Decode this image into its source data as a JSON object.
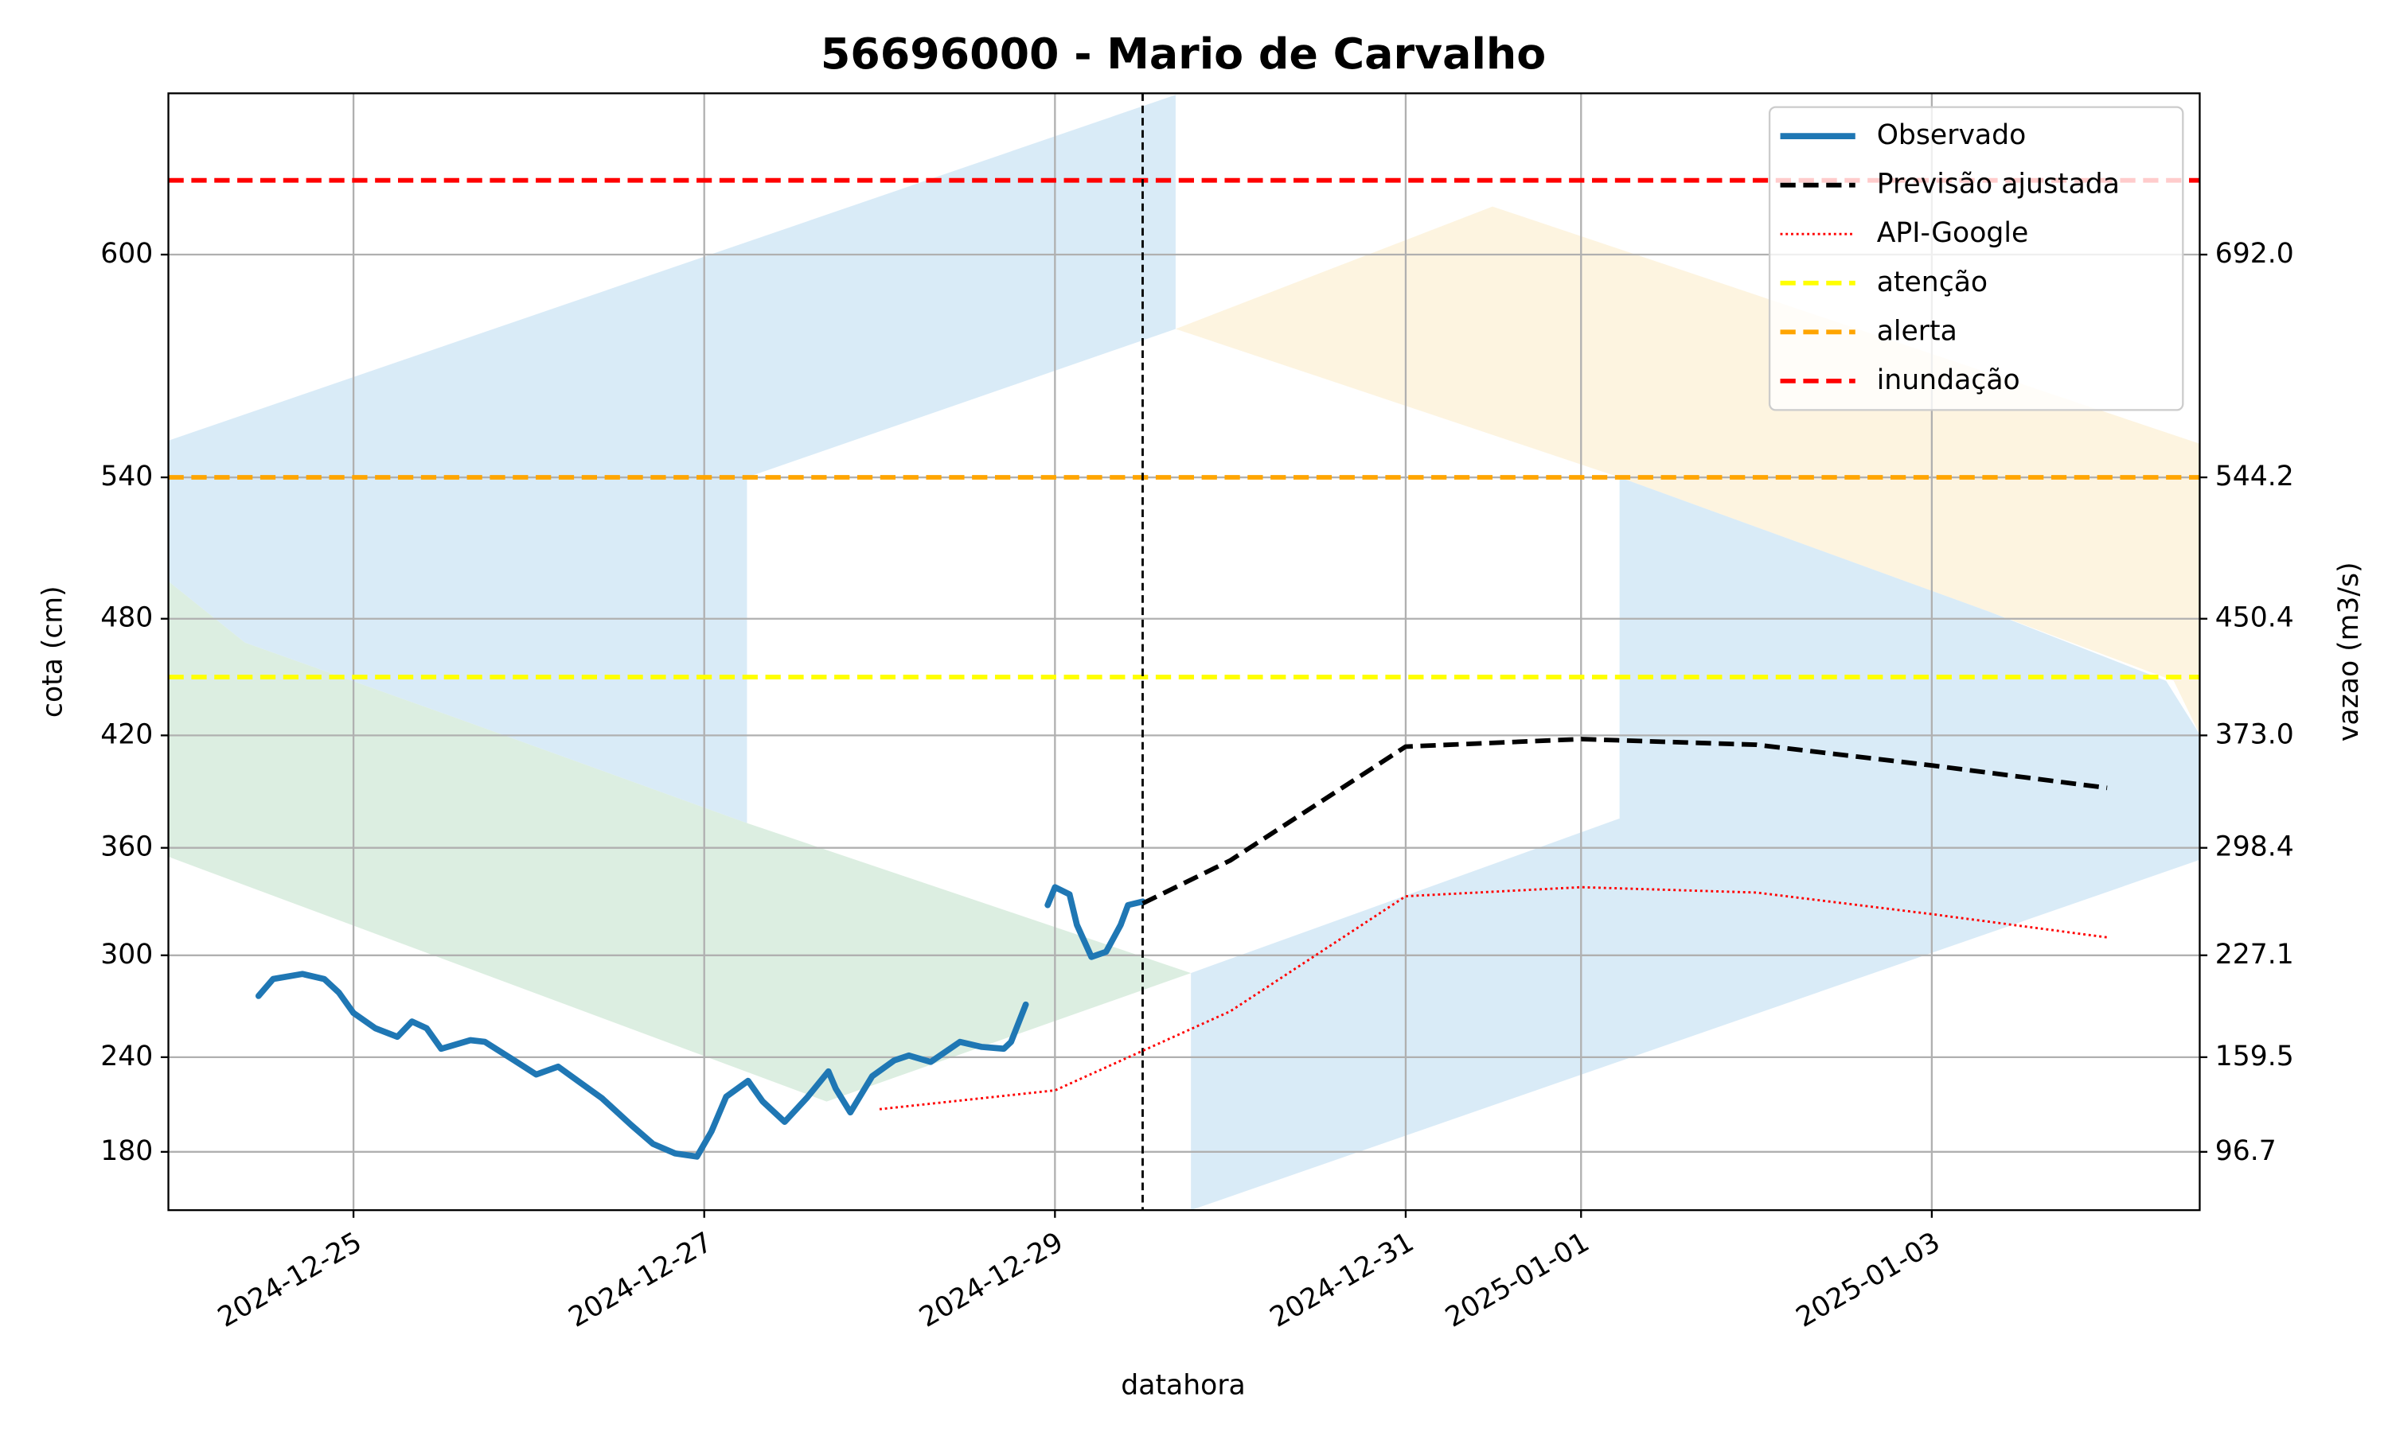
{
  "chart_data": {
    "type": "line",
    "title": "56696000 - Mario de Carvalho",
    "x_label": "datahora",
    "y_label": "cota (cm)",
    "y2_label": "vazao (m3/s)",
    "xlim": [
      "2024-12-23 22:40",
      "2025-01-04 12:40"
    ],
    "xticks": [
      "2024-12-25",
      "2024-12-27",
      "2024-12-29",
      "2024-12-31",
      "2025-01-01",
      "2025-01-03"
    ],
    "yticks": [
      180,
      240,
      300,
      360,
      420,
      480,
      540,
      600
    ],
    "y2lim": [
      58,
      799
    ],
    "y2ticks": [
      96.7,
      159.5,
      227.1,
      298.4,
      {
        "value": 373,
        "label": "373.0"
      },
      {
        "value": 450.4,
        "label": "450.4"
      },
      {
        "value": 544.2,
        "label": "544.2"
      },
      {
        "value": 692,
        "label": "692.0"
      }
    ],
    "grid": true,
    "legend": "upper right",
    "vline_x": "2024-12-29 12:00",
    "series": [
      {
        "name": "Observado",
        "color": "#1f77b4",
        "style": "solid",
        "x": [
          "2024-12-24 11:00",
          "2024-12-24 13:00",
          "2024-12-24 17:00",
          "2024-12-24 20:00",
          "2024-12-24 22:00",
          "2024-12-25 00:00",
          "2024-12-25 03:00",
          "2024-12-25 06:00",
          "2024-12-25 08:00",
          "2024-12-25 10:00",
          "2024-12-25 12:00",
          "2024-12-25 16:00",
          "2024-12-25 18:00",
          "2024-12-25 22:00",
          "2024-12-26 01:00",
          "2024-12-26 04:00",
          "2024-12-26 07:00",
          "2024-12-26 10:00",
          "2024-12-26 14:00",
          "2024-12-26 17:00",
          "2024-12-26 20:00",
          "2024-12-26 23:00",
          "2024-12-27 01:00",
          "2024-12-27 03:00",
          "2024-12-27 06:00",
          "2024-12-27 08:00",
          "2024-12-27 11:00",
          "2024-12-27 14:00",
          "2024-12-27 17:00",
          "2024-12-27 18:00",
          "2024-12-27 20:00",
          "2024-12-27 23:00",
          "2024-12-28 02:00",
          "2024-12-28 04:00",
          "2024-12-28 07:00",
          "2024-12-28 11:00",
          "2024-12-28 14:00",
          "2024-12-28 17:00",
          "2024-12-28 18:00",
          "2024-12-28 20:00",
          "2024-12-28 22:00",
          "2024-12-28 23:00",
          "2024-12-29 00:00",
          "2024-12-29 02:00",
          "2024-12-29 03:00",
          "2024-12-29 05:00",
          "2024-12-29 07:00",
          "2024-12-29 09:00",
          "2024-12-29 10:00",
          "2024-12-29 12:00"
        ],
        "values": [
          276,
          286,
          289,
          286,
          278,
          266,
          257,
          252,
          261,
          257,
          245,
          250,
          249,
          238,
          229,
          234,
          224,
          214,
          197,
          185,
          179,
          177,
          193,
          215,
          225,
          212,
          199,
          214,
          231,
          220,
          205,
          228,
          238,
          241,
          237,
          249,
          246,
          245,
          249,
          271,
          null,
          328,
          338,
          334,
          317,
          299,
          302,
          317,
          328,
          330
        ]
      },
      {
        "name": "Previsão ajustada",
        "color": "#000000",
        "style": "dashed",
        "x": [
          "2024-12-29 12:00",
          "2024-12-30 00:00",
          "2024-12-31 00:00",
          "2025-01-01 00:00",
          "2025-01-02 00:00",
          "2025-01-03 00:00",
          "2025-01-04 00:00"
        ],
        "values": [
          329,
          353,
          414,
          418,
          415,
          404,
          392
        ]
      },
      {
        "name": "API-Google",
        "color": "#ff0000",
        "style": "dotted",
        "x": [
          "2024-12-28 00:00",
          "2024-12-29 00:00",
          "2024-12-30 00:00",
          "2024-12-31 00:00",
          "2025-01-01 00:00",
          "2025-01-02 00:00",
          "2025-01-03 00:00",
          "2025-01-04 00:00"
        ],
        "values": [
          207,
          219,
          267,
          333,
          338,
          335,
          323,
          310
        ]
      }
    ],
    "hlines": [
      {
        "name": "atenção",
        "color": "#ffff00",
        "value": 450
      },
      {
        "name": "alerta",
        "color": "#ffa500",
        "value": 540
      },
      {
        "name": "inundação",
        "color": "#ff0000",
        "value": 620
      }
    ]
  }
}
